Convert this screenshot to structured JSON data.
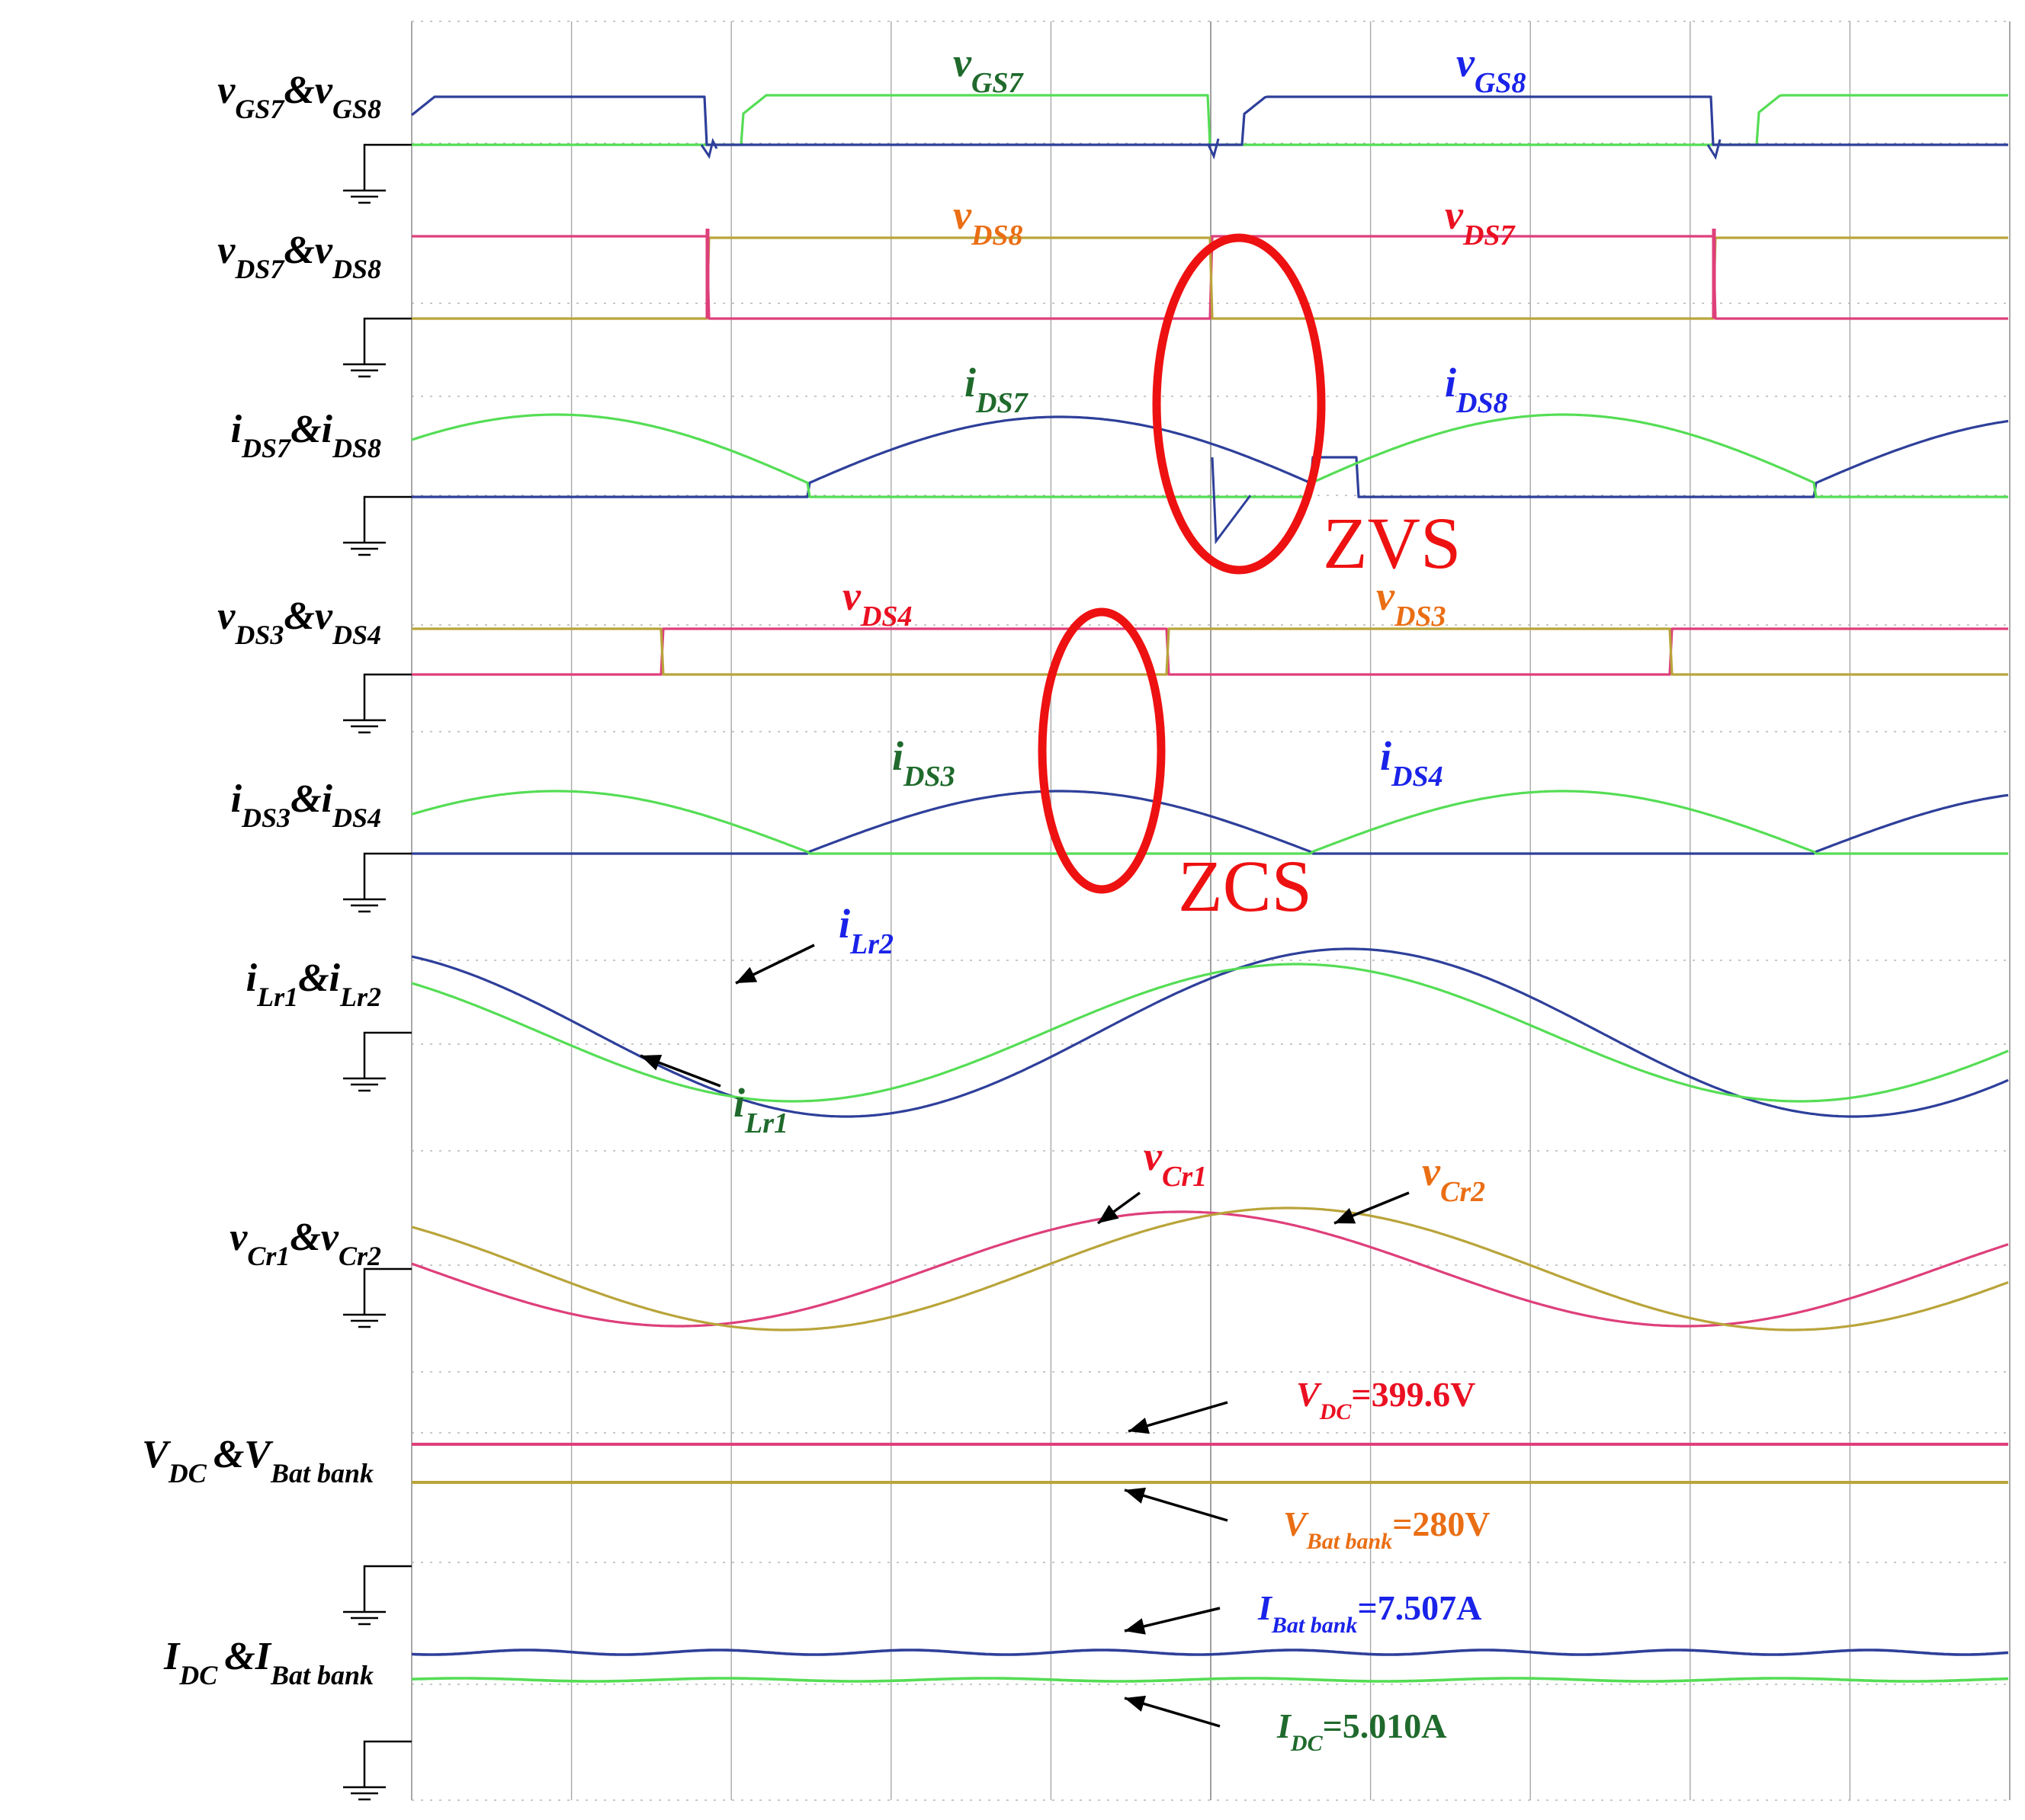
{
  "colors": {
    "green": "#55dd55",
    "blue": "#2e3f9a",
    "magenta": "#de3f7a",
    "olive": "#b9a43a",
    "label_green": "#1f6a2c",
    "label_blue": "#1a23e8",
    "label_red": "#ea1022",
    "label_orange": "#ea6e14",
    "highlight": "#ee1111",
    "grid": "#a8a8a8"
  },
  "rows": [
    {
      "label_main": "v",
      "parts": [
        [
          "v",
          "GS7"
        ],
        [
          "&",
          ""
        ],
        [
          "v",
          "GS8"
        ]
      ]
    },
    {
      "parts": [
        [
          "v",
          "DS7"
        ],
        [
          "&",
          ""
        ],
        [
          "v",
          "DS8"
        ]
      ]
    },
    {
      "parts": [
        [
          "i",
          "DS7"
        ],
        [
          "&",
          ""
        ],
        [
          "i",
          "DS8"
        ]
      ]
    },
    {
      "parts": [
        [
          "v",
          "DS3"
        ],
        [
          "&",
          ""
        ],
        [
          "v",
          "DS4"
        ]
      ]
    },
    {
      "parts": [
        [
          "i",
          "DS3"
        ],
        [
          "&",
          ""
        ],
        [
          "i",
          "DS4"
        ]
      ]
    },
    {
      "parts": [
        [
          "i",
          "Lr1"
        ],
        [
          "&",
          ""
        ],
        [
          "i",
          "Lr2"
        ]
      ]
    },
    {
      "parts": [
        [
          "v",
          "Cr1"
        ],
        [
          "&",
          ""
        ],
        [
          "v",
          "Cr2"
        ]
      ]
    },
    {
      "parts": [
        [
          "V",
          "DC "
        ],
        [
          "&",
          ""
        ],
        [
          "V",
          "Bat bank"
        ]
      ]
    },
    {
      "parts": [
        [
          "I",
          "DC "
        ],
        [
          "&",
          ""
        ],
        [
          "I",
          "Bat bank"
        ]
      ]
    }
  ],
  "annotations": {
    "zvs": "ZVS",
    "zcs": "ZCS",
    "vdc": {
      "var": "V",
      "sub": "DC",
      "value": "=399.6V"
    },
    "vbat": {
      "var": "V",
      "sub": "Bat bank",
      "value": "=280V"
    },
    "ibat": {
      "var": "I",
      "sub": "Bat bank",
      "value": "=7.507A"
    },
    "idc": {
      "var": "I",
      "sub": "DC",
      "value": "=5.010A"
    }
  },
  "trace_labels": [
    {
      "id": "vgs7",
      "var": "v",
      "sub": "GS7",
      "color": "label_green"
    },
    {
      "id": "vgs8",
      "var": "v",
      "sub": "GS8",
      "color": "label_blue"
    },
    {
      "id": "vds8",
      "var": "v",
      "sub": "DS8",
      "color": "label_orange"
    },
    {
      "id": "vds7",
      "var": "v",
      "sub": "DS7",
      "color": "label_red"
    },
    {
      "id": "ids7",
      "var": "i",
      "sub": "DS7",
      "color": "label_green"
    },
    {
      "id": "ids8",
      "var": "i",
      "sub": "DS8",
      "color": "label_blue"
    },
    {
      "id": "vds4",
      "var": "v",
      "sub": "DS4",
      "color": "label_red"
    },
    {
      "id": "vds3",
      "var": "v",
      "sub": "DS3",
      "color": "label_orange"
    },
    {
      "id": "ids3",
      "var": "i",
      "sub": "DS3",
      "color": "label_green"
    },
    {
      "id": "ids4",
      "var": "i",
      "sub": "DS4",
      "color": "label_blue"
    },
    {
      "id": "ilr2",
      "var": "i",
      "sub": "Lr2",
      "color": "label_blue"
    },
    {
      "id": "ilr1",
      "var": "i",
      "sub": "Lr1",
      "color": "label_green"
    },
    {
      "id": "vcr1",
      "var": "v",
      "sub": "Cr1",
      "color": "label_red"
    },
    {
      "id": "vcr2",
      "var": "v",
      "sub": "Cr2",
      "color": "label_orange"
    }
  ],
  "chart_data": {
    "type": "line",
    "title": "",
    "grid": true,
    "grid_divisions_x": 10,
    "x_range": [
      0,
      10
    ],
    "switching_period_divisions": 6.3,
    "traces": [
      {
        "name": "vGS7",
        "color": "green",
        "kind": "gate",
        "high_intervals": [
          [
            2.1,
            5.0
          ],
          [
            8.4,
            10
          ]
        ]
      },
      {
        "name": "vGS8",
        "color": "blue",
        "kind": "gate",
        "high_intervals": [
          [
            0,
            1.8
          ],
          [
            5.2,
            8.1
          ]
        ]
      },
      {
        "name": "vDS7",
        "color": "magenta",
        "kind": "drain_voltage",
        "high_intervals": [
          [
            0,
            1.85
          ],
          [
            5.0,
            8.15
          ]
        ]
      },
      {
        "name": "vDS8",
        "color": "olive",
        "kind": "drain_voltage",
        "high_intervals": [
          [
            1.85,
            5.0
          ],
          [
            8.15,
            10
          ]
        ]
      },
      {
        "name": "iDS7",
        "color": "green",
        "kind": "half_sine",
        "peak_at": 3.3,
        "zero_crossing": 1.85
      },
      {
        "name": "iDS8",
        "color": "blue",
        "kind": "half_sine",
        "peak_at": 6.6,
        "zero_crossing": 5.0
      },
      {
        "name": "vDS3",
        "color": "olive",
        "kind": "drain_voltage"
      },
      {
        "name": "vDS4",
        "color": "magenta",
        "kind": "drain_voltage"
      },
      {
        "name": "iDS3",
        "color": "green",
        "kind": "half_sine",
        "peak_at": 3.0
      },
      {
        "name": "iDS4",
        "color": "blue",
        "kind": "half_sine",
        "peak_at": 6.3
      },
      {
        "name": "iLr1",
        "color": "green",
        "kind": "resonant"
      },
      {
        "name": "iLr2",
        "color": "blue",
        "kind": "resonant"
      },
      {
        "name": "vCr1",
        "color": "magenta",
        "kind": "resonant"
      },
      {
        "name": "vCr2",
        "color": "olive",
        "kind": "resonant"
      },
      {
        "name": "VDC",
        "color": "magenta",
        "kind": "dc",
        "value": 399.6,
        "unit": "V"
      },
      {
        "name": "VBat bank",
        "color": "olive",
        "kind": "dc",
        "value": 280,
        "unit": "V"
      },
      {
        "name": "IBat bank",
        "color": "blue",
        "kind": "dc",
        "value": 7.507,
        "unit": "A"
      },
      {
        "name": "IDC",
        "color": "green",
        "kind": "dc",
        "value": 5.01,
        "unit": "A"
      }
    ]
  }
}
